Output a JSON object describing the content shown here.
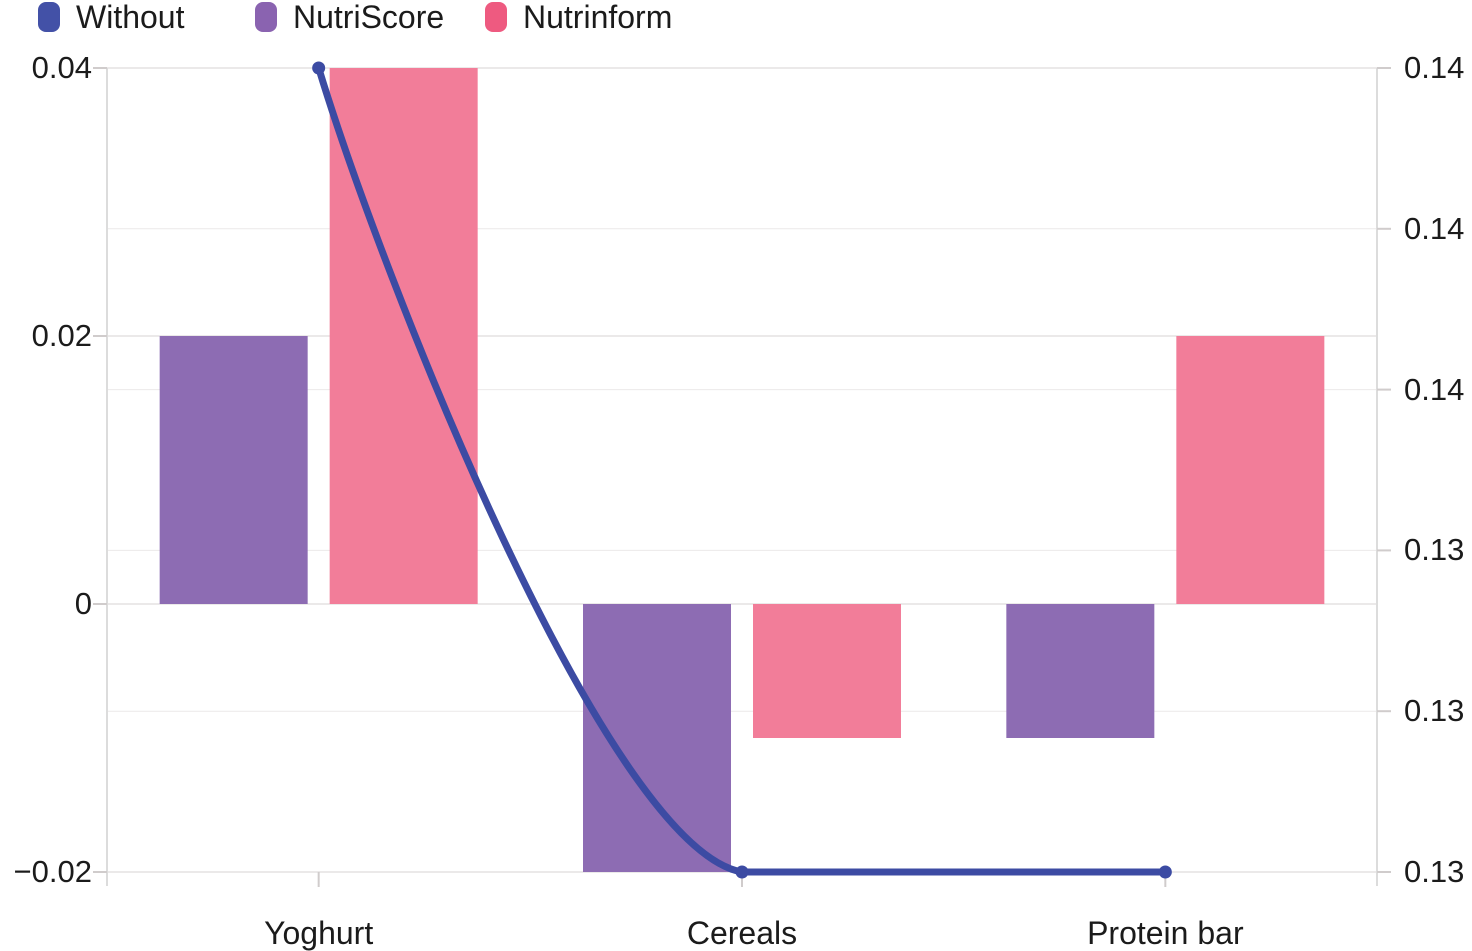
{
  "legend": {
    "items": [
      {
        "label": "Without",
        "color": "#4351A7"
      },
      {
        "label": "NutriScore",
        "color": "#8A63B0"
      },
      {
        "label": "Nutrinform",
        "color": "#EE5A80"
      }
    ]
  },
  "chart_data": {
    "type": "combo_bar_line",
    "categories": [
      "Yoghurt",
      "Cereals",
      "Protein bar"
    ],
    "series": [
      {
        "name": "Without",
        "type": "line",
        "axis": "right",
        "color": "#3C4BA3",
        "values": [
          0.14,
          0.13,
          0.13
        ]
      },
      {
        "name": "NutriScore",
        "type": "bar",
        "axis": "left",
        "color": "#8D6CB3",
        "values": [
          0.02,
          -0.02,
          -0.01
        ]
      },
      {
        "name": "Nutrinform",
        "type": "bar",
        "axis": "left",
        "color": "#F27D99",
        "values": [
          0.04,
          -0.01,
          0.02
        ]
      }
    ],
    "left_axis": {
      "min": -0.02,
      "max": 0.04,
      "ticks": [
        {
          "v": 0.04,
          "label": "0.04"
        },
        {
          "v": 0.02,
          "label": "0.02"
        },
        {
          "v": 0,
          "label": "0"
        },
        {
          "v": -0.02,
          "label": "−0.02"
        }
      ]
    },
    "right_axis": {
      "min": 0.13,
      "max": 0.14,
      "ticks": [
        {
          "v": 0.14,
          "label": "0.14"
        },
        {
          "v": 0.138,
          "label": "0.14"
        },
        {
          "v": 0.136,
          "label": "0.14"
        },
        {
          "v": 0.134,
          "label": "0.13"
        },
        {
          "v": 0.132,
          "label": "0.13"
        },
        {
          "v": 0.13,
          "label": "0.13"
        }
      ]
    },
    "grid": true,
    "legend_position": "top-left"
  },
  "style": {
    "grid_color": "#ebe9e9",
    "axis_color": "#dcdcdc",
    "tick_color": "#d0cccc",
    "text_color": "#1b1b1b"
  }
}
